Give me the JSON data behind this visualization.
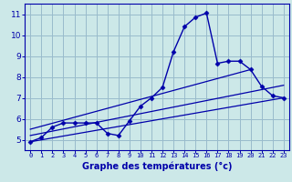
{
  "xlabel": "Graphe des températures (°c)",
  "bg_color": "#cce8e8",
  "grid_color": "#99bbcc",
  "line_color": "#0000aa",
  "spine_color": "#0000aa",
  "xlim": [
    -0.5,
    23.5
  ],
  "ylim": [
    4.5,
    11.5
  ],
  "xticks": [
    0,
    1,
    2,
    3,
    4,
    5,
    6,
    7,
    8,
    9,
    10,
    11,
    12,
    13,
    14,
    15,
    16,
    17,
    18,
    19,
    20,
    21,
    22,
    23
  ],
  "yticks": [
    5,
    6,
    7,
    8,
    9,
    10,
    11
  ],
  "hours": [
    0,
    1,
    2,
    3,
    4,
    5,
    6,
    7,
    8,
    9,
    10,
    11,
    12,
    13,
    14,
    15,
    16,
    17,
    18,
    19,
    20,
    21,
    22,
    23
  ],
  "temp_main": [
    4.9,
    5.1,
    5.6,
    5.8,
    5.8,
    5.8,
    5.8,
    5.3,
    5.2,
    5.9,
    6.6,
    7.0,
    7.5,
    9.2,
    10.4,
    10.85,
    11.05,
    8.65,
    8.75,
    8.75,
    8.35,
    7.55,
    7.1,
    7.0
  ],
  "trend1_x": [
    0,
    23
  ],
  "trend1_y": [
    4.9,
    7.0
  ],
  "trend2_x": [
    0,
    20
  ],
  "trend2_y": [
    5.5,
    8.35
  ],
  "trend3_x": [
    0,
    23
  ],
  "trend3_y": [
    5.2,
    7.6
  ],
  "xlabel_fontsize": 7.0,
  "tick_fontsize_x": 5.0,
  "tick_fontsize_y": 6.5
}
